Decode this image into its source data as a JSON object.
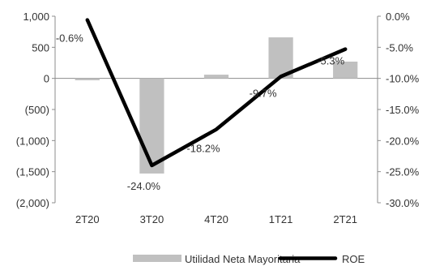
{
  "chart_data": {
    "type": "bar+line",
    "categories": [
      "2T20",
      "3T20",
      "4T20",
      "1T21",
      "2T21"
    ],
    "series": [
      {
        "name": "Utilidad Neta Mayoritaria",
        "type": "bar",
        "axis": "left",
        "color": "#c0c0c0",
        "values": [
          -30,
          -1530,
          60,
          660,
          270
        ]
      },
      {
        "name": "ROE",
        "type": "line",
        "axis": "right",
        "color": "#000000",
        "values": [
          -0.6,
          -24.0,
          -18.2,
          -9.7,
          -5.3
        ],
        "data_labels": [
          "-0.6%",
          "-24.0%",
          "-18.2%",
          "-9.7%",
          "-5.3%"
        ]
      }
    ],
    "y_left": {
      "range": [
        -2000,
        1000
      ],
      "ticks": [
        1000,
        500,
        0,
        -500,
        -1000,
        -1500,
        -2000
      ],
      "tick_labels": [
        "1,000",
        "500",
        "0",
        "(500)",
        "(1,000)",
        "(1,500)",
        "(2,000)"
      ]
    },
    "y_right": {
      "range": [
        -30,
        0
      ],
      "ticks": [
        0,
        -5,
        -10,
        -15,
        -20,
        -25,
        -30
      ],
      "tick_labels": [
        "0.0%",
        "-5.0%",
        "-10.0%",
        "-15.0%",
        "-20.0%",
        "-25.0%",
        "-30.0%"
      ]
    },
    "title": "",
    "xlabel": "",
    "ylabel": "",
    "grid": false,
    "legend": {
      "position": "bottom",
      "entries": [
        "Utilidad Neta Mayoritaria",
        "ROE"
      ]
    }
  }
}
